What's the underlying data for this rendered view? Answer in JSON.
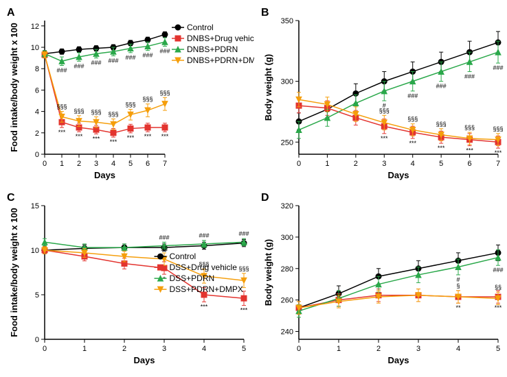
{
  "panels": {
    "A": {
      "type": "line",
      "panel_label": "A",
      "xlabel": "Days",
      "ylabel": "Food intake/body weight x 100",
      "xlim": [
        0,
        7
      ],
      "ylim": [
        0,
        12.5
      ],
      "xticks": [
        0,
        1,
        2,
        3,
        4,
        5,
        6,
        7
      ],
      "yticks": [
        0,
        2,
        4,
        6,
        8,
        10,
        12
      ],
      "label_fontsize": 13,
      "tick_fontsize": 11,
      "background_color": "#ffffff",
      "series": [
        {
          "name": "Control",
          "color": "#000000",
          "marker": "circle",
          "values": [
            9.4,
            9.6,
            9.8,
            9.9,
            10.0,
            10.4,
            10.7,
            11.2
          ],
          "err": [
            0.25,
            0.25,
            0.25,
            0.25,
            0.25,
            0.25,
            0.25,
            0.25
          ]
        },
        {
          "name": "DNBS+Drug vehicle",
          "color": "#e3342f",
          "marker": "square",
          "values": [
            9.3,
            3.0,
            2.5,
            2.3,
            2.0,
            2.4,
            2.5,
            2.5
          ],
          "err": [
            0.3,
            0.5,
            0.4,
            0.4,
            0.4,
            0.4,
            0.4,
            0.4
          ],
          "annotations": [
            null,
            "***",
            "***",
            "***",
            "***",
            "***",
            "***",
            "***"
          ],
          "annot_pos": "below"
        },
        {
          "name": "DNBS+PDRN",
          "color": "#2aa84a",
          "marker": "triangle",
          "values": [
            9.4,
            8.7,
            9.1,
            9.4,
            9.6,
            9.9,
            10.1,
            10.5
          ],
          "err": [
            0.3,
            0.4,
            0.4,
            0.4,
            0.4,
            0.4,
            0.4,
            0.4
          ],
          "annotations": [
            null,
            "###",
            "###",
            "###",
            "###",
            "###",
            "###",
            "###"
          ],
          "annot_pos": "below"
        },
        {
          "name": "DNBS+PDRN+DMPX",
          "color": "#f59e0b",
          "marker": "inv-triangle",
          "values": [
            9.3,
            3.5,
            3.1,
            3.0,
            2.8,
            3.7,
            4.1,
            4.7
          ],
          "err": [
            0.3,
            0.5,
            0.5,
            0.5,
            0.5,
            0.5,
            0.6,
            0.6
          ],
          "annotations": [
            null,
            "§§§",
            "§§§",
            "§§§",
            "§§§",
            "§§§",
            "§§§",
            "§§§"
          ],
          "annot_pos": "above"
        }
      ],
      "legend": [
        {
          "label": "Control",
          "color": "#000000",
          "marker": "circle"
        },
        {
          "label": "DNBS+Drug vehicle",
          "color": "#e3342f",
          "marker": "square"
        },
        {
          "label": "DNBS+PDRN",
          "color": "#2aa84a",
          "marker": "triangle"
        },
        {
          "label": "DNBS+PDRN+DMPX",
          "color": "#f59e0b",
          "marker": "inv-triangle"
        }
      ],
      "legend_pos": "right"
    },
    "B": {
      "type": "line",
      "panel_label": "B",
      "xlabel": "Days",
      "ylabel": "Body weight (g)",
      "xlim": [
        0,
        7
      ],
      "ylim": [
        240,
        350
      ],
      "xticks": [
        0,
        1,
        2,
        3,
        4,
        5,
        6,
        7
      ],
      "yticks": [
        250,
        300,
        350
      ],
      "label_fontsize": 13,
      "tick_fontsize": 11,
      "background_color": "#ffffff",
      "series": [
        {
          "name": "Control",
          "color": "#000000",
          "marker": "circle",
          "values": [
            267,
            277,
            290,
            300,
            308,
            316,
            324,
            332
          ],
          "err": [
            7,
            7,
            8,
            8,
            8,
            8,
            9,
            9
          ]
        },
        {
          "name": "DNBS+Drug vehicle",
          "color": "#e3342f",
          "marker": "square",
          "values": [
            280,
            278,
            270,
            263,
            258,
            254,
            252,
            250
          ],
          "err": [
            6,
            6,
            6,
            6,
            5,
            5,
            5,
            5
          ],
          "annotations": [
            null,
            null,
            null,
            "***",
            "***",
            "***",
            "***",
            "***"
          ],
          "annot_pos": "below"
        },
        {
          "name": "DNBS+PDRN",
          "color": "#2aa84a",
          "marker": "triangle",
          "values": [
            260,
            270,
            282,
            292,
            300,
            308,
            316,
            324
          ],
          "err": [
            7,
            7,
            7,
            8,
            8,
            8,
            8,
            9
          ],
          "annotations": [
            null,
            null,
            null,
            "#",
            "###",
            "###",
            "###",
            "###"
          ],
          "annot_pos": "below"
        },
        {
          "name": "DNBS+PDRN+DMPX",
          "color": "#f59e0b",
          "marker": "inv-triangle",
          "values": [
            285,
            281,
            273,
            266,
            260,
            256,
            253,
            252
          ],
          "err": [
            6,
            6,
            6,
            6,
            5,
            5,
            5,
            5
          ],
          "annotations": [
            null,
            null,
            null,
            "§§§",
            "§§§",
            "§§§",
            "§§§",
            "§§§"
          ],
          "annot_pos": "above"
        }
      ]
    },
    "C": {
      "type": "line",
      "panel_label": "C",
      "xlabel": "Days",
      "ylabel": "Food intake/body weight x 100",
      "xlim": [
        0,
        5
      ],
      "ylim": [
        0,
        15
      ],
      "xticks": [
        0,
        1,
        2,
        3,
        4,
        5
      ],
      "yticks": [
        0,
        5,
        10,
        15
      ],
      "label_fontsize": 13,
      "tick_fontsize": 11,
      "background_color": "#ffffff",
      "series": [
        {
          "name": "Control",
          "color": "#000000",
          "marker": "circle",
          "values": [
            10.0,
            10.2,
            10.3,
            10.3,
            10.5,
            10.8
          ],
          "err": [
            0.4,
            0.4,
            0.4,
            0.4,
            0.4,
            0.4
          ]
        },
        {
          "name": "DSS+Drug vehicle",
          "color": "#e3342f",
          "marker": "square",
          "values": [
            10.0,
            9.3,
            8.5,
            8.0,
            5.0,
            4.6
          ],
          "err": [
            0.4,
            0.5,
            0.6,
            0.7,
            0.8,
            0.8
          ],
          "annotations": [
            null,
            null,
            null,
            "*",
            "***",
            "***"
          ],
          "annot_pos": "below"
        },
        {
          "name": "DSS+PDRN",
          "color": "#2aa84a",
          "marker": "triangle",
          "values": [
            10.9,
            10.3,
            10.3,
            10.5,
            10.7,
            10.9
          ],
          "err": [
            0.4,
            0.4,
            0.4,
            0.4,
            0.4,
            0.4
          ],
          "annotations": [
            null,
            null,
            null,
            "###",
            "###",
            "###"
          ],
          "annot_pos": "above"
        },
        {
          "name": "DSS+PDRN+DMPX",
          "color": "#f59e0b",
          "marker": "inv-triangle",
          "values": [
            10.0,
            9.7,
            9.3,
            9.0,
            7.1,
            6.6
          ],
          "err": [
            0.4,
            0.5,
            0.6,
            0.7,
            0.8,
            0.8
          ],
          "annotations": [
            null,
            null,
            null,
            "§§",
            "§§§",
            "§§§"
          ],
          "annot_pos": "above"
        }
      ],
      "legend": [
        {
          "label": "Control",
          "color": "#000000",
          "marker": "circle"
        },
        {
          "label": "DSS+Drug vehicle",
          "color": "#e3342f",
          "marker": "square"
        },
        {
          "label": "DSS+PDRN",
          "color": "#2aa84a",
          "marker": "triangle"
        },
        {
          "label": "DSS+PDRN+DMPX",
          "color": "#f59e0b",
          "marker": "inv-triangle"
        }
      ],
      "legend_pos": "right-inner"
    },
    "D": {
      "type": "line",
      "panel_label": "D",
      "xlabel": "Days",
      "ylabel": "Body weight (g)",
      "xlim": [
        0,
        5
      ],
      "ylim": [
        235,
        320
      ],
      "xticks": [
        0,
        1,
        2,
        3,
        4,
        5
      ],
      "yticks": [
        240,
        260,
        280,
        300,
        320
      ],
      "label_fontsize": 13,
      "tick_fontsize": 11,
      "background_color": "#ffffff",
      "series": [
        {
          "name": "Control",
          "color": "#000000",
          "marker": "circle",
          "values": [
            255,
            264,
            275,
            280,
            285,
            290
          ],
          "err": [
            4,
            5,
            5,
            5,
            5,
            5
          ]
        },
        {
          "name": "DSS+Drug vehicle",
          "color": "#e3342f",
          "marker": "square",
          "values": [
            255,
            260,
            263,
            263,
            262,
            262
          ],
          "err": [
            4,
            4,
            4,
            4,
            4,
            4
          ],
          "annotations": [
            null,
            null,
            null,
            null,
            "**",
            "***"
          ],
          "annot_pos": "below"
        },
        {
          "name": "DSS+PDRN",
          "color": "#2aa84a",
          "marker": "triangle",
          "values": [
            253,
            261,
            270,
            276,
            281,
            287
          ],
          "err": [
            4,
            5,
            5,
            5,
            5,
            5
          ],
          "annotations": [
            null,
            null,
            null,
            null,
            "#",
            "###"
          ],
          "annot_pos": "below"
        },
        {
          "name": "DSS+PDRN+DMPX",
          "color": "#f59e0b",
          "marker": "inv-triangle",
          "values": [
            255,
            259,
            262,
            263,
            262,
            261
          ],
          "err": [
            4,
            4,
            4,
            4,
            4,
            4
          ],
          "annotations": [
            null,
            null,
            null,
            null,
            "§",
            "§§"
          ],
          "annot_pos": "above"
        }
      ]
    }
  },
  "marker_size": 4,
  "line_width": 1.5,
  "error_cap_width": 3
}
